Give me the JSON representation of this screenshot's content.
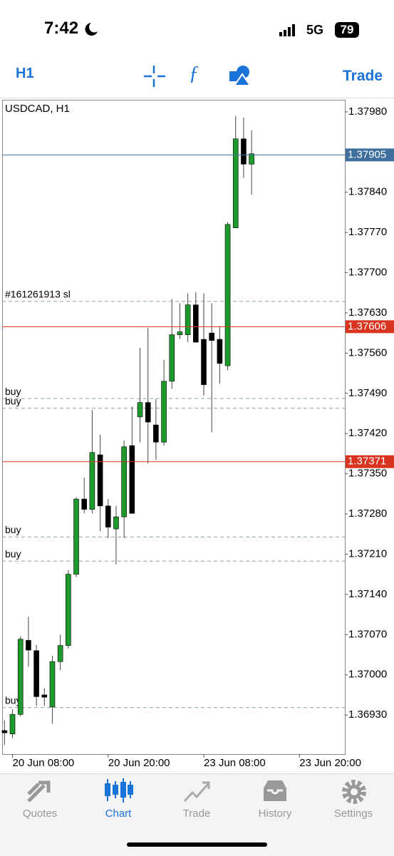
{
  "status_bar": {
    "time": "7:42",
    "network": "5G",
    "battery": "79"
  },
  "toolbar": {
    "timeframe": "H1",
    "trade": "Trade"
  },
  "chart_data": {
    "type": "candlestick",
    "title": "USDCAD, H1",
    "open": [
      1.36903,
      1.36897,
      1.36931,
      1.3706,
      1.37042,
      1.36965,
      1.36944,
      1.37023,
      1.37051,
      1.37175,
      1.37306,
      1.37288,
      1.37383,
      1.37294,
      1.37254,
      1.37275,
      1.37399,
      1.37449,
      1.37474,
      1.37435,
      1.37405,
      1.37511,
      1.37592,
      1.37592,
      1.37644,
      1.37584,
      1.37595,
      1.37584,
      1.37538,
      1.37778,
      1.37933,
      1.37889
    ],
    "high": [
      1.36921,
      1.3694,
      1.37067,
      1.37101,
      1.37052,
      1.36977,
      1.37033,
      1.3707,
      1.37182,
      1.37309,
      1.37343,
      1.37461,
      1.37418,
      1.37306,
      1.37294,
      1.37408,
      1.37467,
      1.37569,
      1.37604,
      1.3748,
      1.37548,
      1.37654,
      1.37647,
      1.37664,
      1.37666,
      1.37664,
      1.37647,
      1.37607,
      1.37788,
      1.37973,
      1.3797,
      1.37948
    ],
    "low": [
      1.36878,
      1.3689,
      1.36928,
      1.37014,
      1.36946,
      1.36946,
      1.36915,
      1.37008,
      1.37046,
      1.3717,
      1.37281,
      1.37281,
      1.3725,
      1.37238,
      1.37192,
      1.37238,
      1.37281,
      1.37405,
      1.37368,
      1.37374,
      1.37399,
      1.37498,
      1.37585,
      1.37579,
      1.37579,
      1.37486,
      1.37422,
      1.37507,
      1.3753,
      1.37778,
      1.37865,
      1.37836
    ],
    "close": [
      1.36899,
      1.36931,
      1.37062,
      1.37043,
      1.36962,
      1.36961,
      1.37023,
      1.37051,
      1.37175,
      1.37306,
      1.37288,
      1.37387,
      1.37294,
      1.37257,
      1.37275,
      1.37397,
      1.37281,
      1.37474,
      1.3744,
      1.37405,
      1.37511,
      1.37592,
      1.37597,
      1.37644,
      1.37579,
      1.37505,
      1.37582,
      1.37542,
      1.37784,
      1.37933,
      1.37889,
      1.37907
    ],
    "up_color": "#1e9a2c",
    "down_color": "#000000",
    "ylim": [
      1.36862,
      1.38001
    ],
    "xlim": [
      -0.3,
      42.7
    ],
    "yticks": [
      {
        "value": 1.3798,
        "label": "1.37980"
      },
      {
        "value": 1.3784,
        "label": "1.37840"
      },
      {
        "value": 1.3777,
        "label": "1.37770"
      },
      {
        "value": 1.377,
        "label": "1.37700"
      },
      {
        "value": 1.3763,
        "label": "1.37630"
      },
      {
        "value": 1.3756,
        "label": "1.37560"
      },
      {
        "value": 1.3749,
        "label": "1.37490"
      },
      {
        "value": 1.3742,
        "label": "1.37420"
      },
      {
        "value": 1.3735,
        "label": "1.37350"
      },
      {
        "value": 1.3728,
        "label": "1.37280"
      },
      {
        "value": 1.3721,
        "label": "1.37210"
      },
      {
        "value": 1.3714,
        "label": "1.37140"
      },
      {
        "value": 1.3707,
        "label": "1.37070"
      },
      {
        "value": 1.37,
        "label": "1.37000"
      },
      {
        "value": 1.3693,
        "label": "1.36930"
      }
    ],
    "xticks": [
      {
        "value": 1,
        "label": "20 Jun 08:00"
      },
      {
        "value": 13,
        "label": "20 Jun 20:00"
      },
      {
        "value": 25,
        "label": "23 Jun 08:00"
      },
      {
        "value": 37,
        "label": "23 Jun 20:00"
      }
    ],
    "price_lines": [
      {
        "value": 1.37905,
        "color": "#3f6f9c"
      },
      {
        "value": 1.37606,
        "color": "#d9341f"
      },
      {
        "value": 1.37371,
        "color": "#d9341f"
      }
    ],
    "order_lines": [
      {
        "label": "#161261913 sl",
        "value": 1.3765
      },
      {
        "label": "buy",
        "value": 1.37481
      },
      {
        "label": "buy",
        "value": 1.37464
      },
      {
        "label": "buy",
        "value": 1.3724
      },
      {
        "label": "buy",
        "value": 1.37198
      },
      {
        "label": "buy",
        "value": 1.36943
      }
    ]
  },
  "tab_bar": {
    "tabs": [
      "Quotes",
      "Chart",
      "Trade",
      "History",
      "Settings"
    ]
  }
}
